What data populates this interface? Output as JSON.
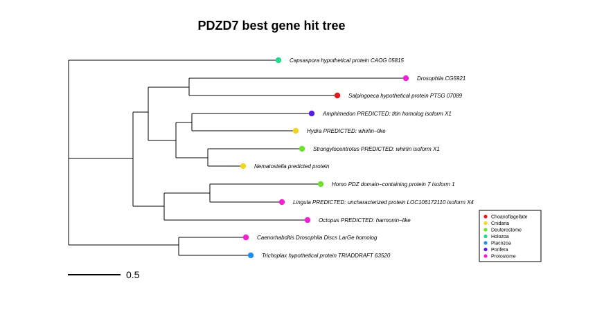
{
  "title": "PDZD7 best gene hit tree",
  "scale_bar": {
    "label": "0.5"
  },
  "groups": [
    {
      "name": "Choanoflagellate",
      "color": "#e31a1c"
    },
    {
      "name": "Cnidaria",
      "color": "#f2d51f"
    },
    {
      "name": "Deuterostome",
      "color": "#6ee030"
    },
    {
      "name": "Holozoa",
      "color": "#21d98f"
    },
    {
      "name": "Placozoa",
      "color": "#1f8ef0"
    },
    {
      "name": "Porifera",
      "color": "#5a1fe0"
    },
    {
      "name": "Protostome",
      "color": "#ee22cf"
    }
  ],
  "leaves": [
    {
      "label": "Capsaspora  hypothetical protein CAOG 05815",
      "group": "Holozoa"
    },
    {
      "label": "Drosophila  CG5921",
      "group": "Protostome"
    },
    {
      "label": "Salpingoeca  hypothetical protein PTSG 07089",
      "group": "Choanoflagellate"
    },
    {
      "label": "Amphimedon  PREDICTED: titin homolog isoform X1",
      "group": "Porifera"
    },
    {
      "label": "Hydra  PREDICTED: whirlin−like",
      "group": "Cnidaria"
    },
    {
      "label": "Strongylocentrotus  PREDICTED: whirlin isoform X1",
      "group": "Deuterostome"
    },
    {
      "label": "Nematostella  predicted protein",
      "group": "Cnidaria"
    },
    {
      "label": "Homo  PDZ domain−containing protein 7 isoform 1",
      "group": "Deuterostome"
    },
    {
      "label": "Lingula  PREDICTED: uncharacterized protein LOC106172110 isoform X4",
      "group": "Protostome"
    },
    {
      "label": "Octopus  PREDICTED: harmonin−like",
      "group": "Protostome"
    },
    {
      "label": "Caenorhabditis  Drosophila Discs LarGe homolog",
      "group": "Protostome"
    },
    {
      "label": "Trichoplax  hypothetical protein TRIADDRAFT 63520",
      "group": "Placozoa"
    }
  ]
}
